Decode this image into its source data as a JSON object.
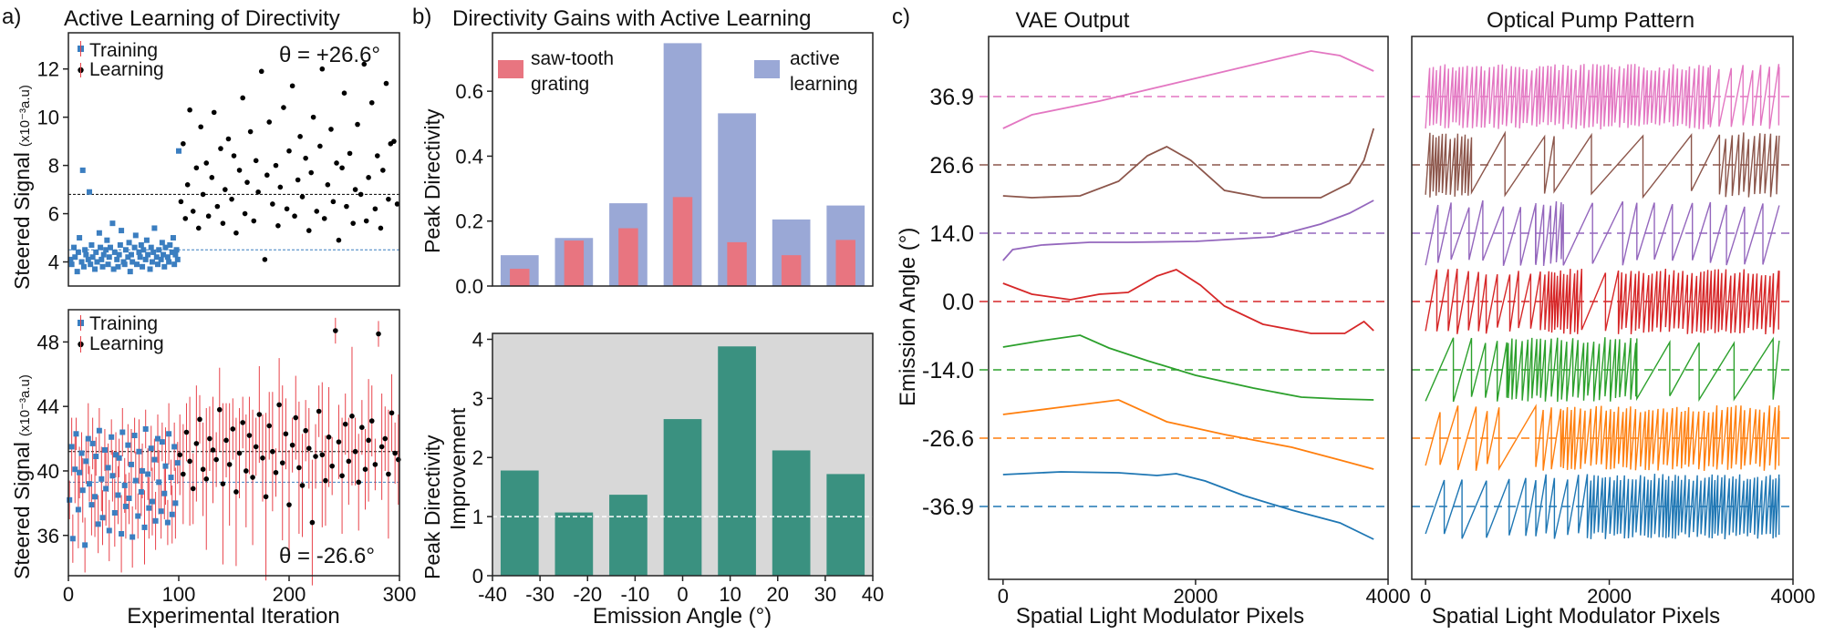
{
  "panel_letters": {
    "a": "a)",
    "b": "b)",
    "c": "c)"
  },
  "colors": {
    "training": "#3b7ec0",
    "learning": "#000000",
    "errorbar": "#e8424a",
    "sawtooth": "#e87580",
    "active": "#9aa8d6",
    "improvement": "#3a9180",
    "grey_bg": "#d8d8d8",
    "series": [
      "#1f77b4",
      "#ff7f0e",
      "#2ca02c",
      "#d62728",
      "#9467bd",
      "#8c564b",
      "#e377c2"
    ]
  },
  "chart_data": [
    {
      "id": "a_top",
      "type": "scatter",
      "title": "Active Learning of Directivity",
      "annotation": "θ = +26.6°",
      "ylabel": "Steered Signal",
      "ylabel_unit": "(x10⁻³a.u)",
      "xlim": [
        0,
        300
      ],
      "ylim": [
        3,
        13.5
      ],
      "yticks": [
        4,
        6,
        8,
        10,
        12
      ],
      "legend": {
        "position": "top-left",
        "entries": [
          "Training",
          "Learning"
        ]
      },
      "reference_lines": [
        {
          "y": 6.8,
          "color": "#000000"
        },
        {
          "y": 4.5,
          "color": "#3b7ec0"
        }
      ],
      "training": {
        "x_range": [
          0,
          100
        ],
        "mean": 4.3,
        "spread": 0.55,
        "x": [
          2,
          3,
          5,
          6,
          8,
          9,
          10,
          12,
          13,
          14,
          15,
          16,
          18,
          19,
          20,
          21,
          22,
          24,
          25,
          26,
          28,
          29,
          30,
          31,
          32,
          34,
          35,
          36,
          37,
          38,
          40,
          41,
          42,
          44,
          45,
          46,
          47,
          48,
          50,
          51,
          52,
          54,
          55,
          56,
          57,
          58,
          60,
          61,
          62,
          64,
          65,
          66,
          67,
          68,
          70,
          71,
          72,
          74,
          75,
          76,
          77,
          78,
          80,
          81,
          82,
          84,
          85,
          86,
          87,
          88,
          90,
          91,
          92,
          94,
          95,
          96,
          97,
          98,
          99,
          100
        ],
        "y": [
          4.1,
          3.9,
          4.6,
          4.2,
          3.6,
          4.4,
          5.0,
          4.0,
          7.8,
          3.8,
          4.5,
          4.3,
          4.1,
          6.9,
          3.9,
          4.7,
          4.2,
          3.7,
          4.4,
          4.0,
          5.2,
          4.6,
          4.1,
          3.8,
          4.3,
          4.5,
          4.9,
          3.9,
          4.2,
          4.6,
          5.6,
          3.7,
          4.4,
          4.1,
          3.8,
          4.3,
          4.7,
          5.3,
          4.0,
          3.9,
          4.5,
          4.2,
          4.8,
          3.6,
          4.3,
          4.0,
          4.6,
          5.1,
          3.9,
          4.4,
          4.2,
          4.7,
          3.8,
          4.5,
          4.1,
          4.9,
          4.3,
          3.7,
          4.6,
          4.0,
          4.4,
          5.4,
          4.2,
          3.9,
          4.5,
          4.1,
          4.8,
          4.3,
          3.8,
          4.6,
          4.2,
          4.0,
          4.7,
          4.4,
          5.0,
          3.9,
          4.3,
          4.5,
          4.1,
          8.6
        ]
      },
      "learning": {
        "x_range": [
          100,
          300
        ],
        "mean": 6.8,
        "spread": 1.6,
        "x": [
          102,
          104,
          106,
          108,
          110,
          113,
          116,
          118,
          120,
          122,
          125,
          127,
          130,
          132,
          135,
          138,
          140,
          142,
          145,
          148,
          150,
          152,
          155,
          158,
          160,
          162,
          165,
          168,
          170,
          172,
          175,
          178,
          180,
          182,
          185,
          188,
          190,
          192,
          195,
          198,
          200,
          203,
          205,
          208,
          210,
          212,
          215,
          218,
          220,
          222,
          225,
          228,
          230,
          232,
          235,
          238,
          240,
          243,
          245,
          248,
          250,
          252,
          255,
          258,
          260,
          262,
          265,
          268,
          270,
          272,
          275,
          278,
          280,
          283,
          285,
          288,
          290,
          292,
          295,
          298
        ],
        "y": [
          6.5,
          8.9,
          5.8,
          7.2,
          10.3,
          6.1,
          7.9,
          5.4,
          9.6,
          6.8,
          8.1,
          5.9,
          7.5,
          10.2,
          6.3,
          8.7,
          5.6,
          7.0,
          9.1,
          6.6,
          8.4,
          5.2,
          7.8,
          10.8,
          6.0,
          7.3,
          9.4,
          5.7,
          8.2,
          6.9,
          11.9,
          4.1,
          7.6,
          9.8,
          6.4,
          8.0,
          5.5,
          7.1,
          10.4,
          6.2,
          8.6,
          11.3,
          5.9,
          7.4,
          9.2,
          6.7,
          8.3,
          5.3,
          7.7,
          10.0,
          6.1,
          8.8,
          12.0,
          5.8,
          7.2,
          9.5,
          6.5,
          8.1,
          4.9,
          7.9,
          11.0,
          6.3,
          8.5,
          5.6,
          7.0,
          9.7,
          6.8,
          12.2,
          5.7,
          7.5,
          10.6,
          6.2,
          8.4,
          5.4,
          7.8,
          11.4,
          6.6,
          8.9,
          9.0,
          6.4
        ]
      }
    },
    {
      "id": "a_bottom",
      "type": "scatter",
      "annotation": "θ = -26.6°",
      "xlabel": "Experimental Iteration",
      "ylabel": "Steered Signal",
      "ylabel_unit": "(x10⁻³a.u)",
      "xlim": [
        0,
        300
      ],
      "xticks": [
        0,
        100,
        200,
        300
      ],
      "ylim": [
        33.5,
        50
      ],
      "yticks": [
        36,
        40,
        44,
        48
      ],
      "legend": {
        "position": "top-left",
        "entries": [
          "Training",
          "Learning"
        ]
      },
      "reference_lines": [
        {
          "y": 41.2,
          "color": "#000000"
        },
        {
          "y": 39.3,
          "color": "#3b7ec0"
        }
      ],
      "training": {
        "x": [
          1,
          3,
          4,
          6,
          7,
          9,
          10,
          12,
          13,
          15,
          16,
          18,
          19,
          21,
          22,
          24,
          25,
          27,
          28,
          30,
          31,
          33,
          34,
          36,
          37,
          39,
          40,
          42,
          43,
          45,
          46,
          48,
          49,
          51,
          52,
          54,
          55,
          57,
          58,
          60,
          61,
          63,
          64,
          66,
          67,
          69,
          70,
          72,
          73,
          75,
          76,
          78,
          79,
          81,
          82,
          84,
          85,
          87,
          88,
          90,
          91,
          93,
          94,
          96,
          97,
          99
        ],
        "y": [
          38.2,
          41.5,
          35.8,
          40.1,
          42.3,
          37.6,
          39.9,
          41.1,
          38.8,
          35.4,
          40.6,
          42.0,
          39.2,
          37.9,
          41.7,
          38.4,
          40.9,
          36.7,
          42.5,
          39.5,
          37.1,
          41.3,
          38.9,
          40.2,
          36.3,
          42.1,
          39.7,
          37.4,
          41.0,
          38.5,
          40.8,
          36.1,
          42.4,
          39.1,
          37.8,
          41.6,
          38.3,
          40.4,
          35.9,
          42.2,
          39.4,
          37.2,
          41.2,
          38.7,
          40.0,
          36.5,
          42.6,
          39.8,
          37.7,
          41.4,
          38.1,
          40.7,
          36.9,
          42.0,
          39.3,
          37.5,
          41.8,
          38.6,
          40.3,
          36.8,
          42.3,
          39.6,
          37.3,
          41.5,
          38.0,
          40.5
        ],
        "err": [
          1.2,
          1.8,
          1.5,
          2.1,
          1.0,
          2.4,
          1.6,
          1.3,
          2.0,
          1.7,
          1.4,
          2.2,
          1.1,
          1.9,
          1.6,
          2.5,
          1.2,
          1.8,
          1.4,
          2.0,
          1.7,
          1.3,
          2.3,
          1.5,
          1.9,
          1.1,
          1.6,
          2.1,
          1.4,
          1.8,
          1.2,
          2.4,
          1.5,
          1.7,
          2.0,
          1.3,
          1.6,
          2.2,
          1.9,
          1.1,
          1.8,
          1.4,
          2.0,
          1.5,
          1.7,
          2.3,
          1.2,
          1.6,
          1.9,
          1.4,
          2.1,
          1.3,
          1.8,
          1.5,
          2.0,
          1.7,
          1.2,
          1.6,
          2.4,
          1.4,
          1.9,
          1.1,
          1.8,
          1.5,
          2.2,
          1.3
        ]
      },
      "learning": {
        "x": [
          101,
          104,
          107,
          110,
          113,
          116,
          119,
          122,
          125,
          128,
          131,
          134,
          137,
          140,
          143,
          146,
          149,
          152,
          155,
          158,
          161,
          164,
          167,
          170,
          173,
          176,
          179,
          182,
          185,
          188,
          191,
          194,
          197,
          200,
          203,
          206,
          209,
          212,
          215,
          218,
          221,
          224,
          227,
          230,
          233,
          236,
          239,
          242,
          245,
          248,
          251,
          254,
          257,
          260,
          263,
          266,
          269,
          272,
          275,
          278,
          281,
          284,
          287,
          290,
          293,
          296,
          299
        ],
        "y": [
          41.0,
          39.8,
          42.4,
          40.6,
          38.9,
          41.7,
          43.2,
          40.1,
          39.5,
          42.0,
          41.3,
          40.7,
          43.8,
          39.2,
          41.9,
          40.4,
          42.6,
          38.7,
          41.1,
          43.0,
          40.0,
          42.2,
          39.6,
          41.5,
          43.5,
          40.8,
          38.4,
          42.8,
          41.2,
          39.9,
          44.1,
          40.5,
          42.3,
          37.9,
          41.6,
          43.3,
          40.2,
          39.1,
          42.5,
          41.4,
          36.8,
          40.9,
          43.7,
          41.0,
          39.4,
          42.1,
          40.3,
          48.7,
          41.8,
          39.7,
          42.9,
          40.6,
          43.4,
          41.2,
          39.3,
          42.7,
          40.1,
          41.9,
          43.1,
          40.4,
          48.5,
          41.5,
          42.0,
          39.8,
          43.6,
          41.1,
          40.7
        ],
        "err": [
          2.5,
          3.1,
          1.8,
          4.0,
          2.2,
          3.6,
          1.5,
          2.9,
          4.4,
          2.0,
          3.3,
          1.7,
          2.6,
          5.0,
          2.3,
          3.8,
          1.9,
          4.6,
          2.8,
          1.6,
          3.5,
          2.4,
          4.2,
          1.8,
          3.0,
          2.7,
          5.2,
          2.1,
          3.7,
          1.5,
          2.9,
          4.8,
          2.2,
          3.4,
          1.7,
          2.6,
          4.1,
          3.2,
          1.9,
          2.5,
          3.9,
          2.0,
          1.6,
          4.5,
          2.8,
          3.1,
          1.8,
          0.8,
          2.3,
          3.6,
          1.9,
          2.7,
          4.3,
          2.1,
          3.0,
          1.7,
          2.5,
          3.8,
          2.2,
          1.6,
          0.8,
          3.3,
          2.0,
          4.0,
          2.4,
          1.9,
          2.8
        ]
      }
    },
    {
      "id": "b_top",
      "type": "bar",
      "title": "Directivity Gains with Active Learning",
      "ylabel": "Peak Directivity",
      "categories": [
        -36.9,
        -26.6,
        -14.0,
        0.0,
        14.0,
        26.6,
        36.9
      ],
      "ylim": [
        0,
        0.78
      ],
      "yticks": [
        0.0,
        0.2,
        0.4,
        0.6
      ],
      "xlim": [
        -40,
        40
      ],
      "legend": {
        "position": "top",
        "entries": [
          "saw-tooth grating",
          "active learning"
        ]
      },
      "series": [
        {
          "name": "active learning",
          "values": [
            0.095,
            0.148,
            0.255,
            0.748,
            0.532,
            0.205,
            0.248
          ]
        },
        {
          "name": "saw-tooth grating",
          "values": [
            0.053,
            0.14,
            0.178,
            0.274,
            0.135,
            0.095,
            0.142
          ]
        }
      ]
    },
    {
      "id": "b_bottom",
      "type": "bar",
      "xlabel": "Emission Angle (°)",
      "ylabel": "Peak Directivity",
      "ylabel2": "Improvement",
      "categories": [
        -36.9,
        -26.6,
        -14.0,
        0.0,
        14.0,
        26.6,
        36.9
      ],
      "values": [
        1.78,
        1.07,
        1.37,
        2.65,
        3.88,
        2.12,
        1.72
      ],
      "ylim": [
        0,
        4.1
      ],
      "yticks": [
        0,
        1,
        2,
        3,
        4
      ],
      "xlim": [
        -40,
        40
      ],
      "xticks": [
        -40,
        -30,
        -20,
        -10,
        0,
        10,
        20,
        30,
        40
      ],
      "reference_line": 1.0
    },
    {
      "id": "c_left",
      "type": "line",
      "title": "VAE Output",
      "xlabel": "Spatial Light Modulator Pixels",
      "ylabel": "Emission Angle (°)",
      "xlim": [
        -150,
        4000
      ],
      "xticks": [
        0,
        2000,
        4000
      ],
      "angle_labels": [
        "36.9",
        "26.6",
        "14.0",
        "0.0",
        "-14.0",
        "-26.6",
        "-36.9"
      ]
    },
    {
      "id": "c_right",
      "type": "line",
      "title": "Optical Pump Pattern",
      "xlabel": "Spatial Light Modulator Pixels",
      "xlim": [
        -150,
        4000
      ],
      "xticks": [
        0,
        2000,
        4000
      ]
    }
  ]
}
